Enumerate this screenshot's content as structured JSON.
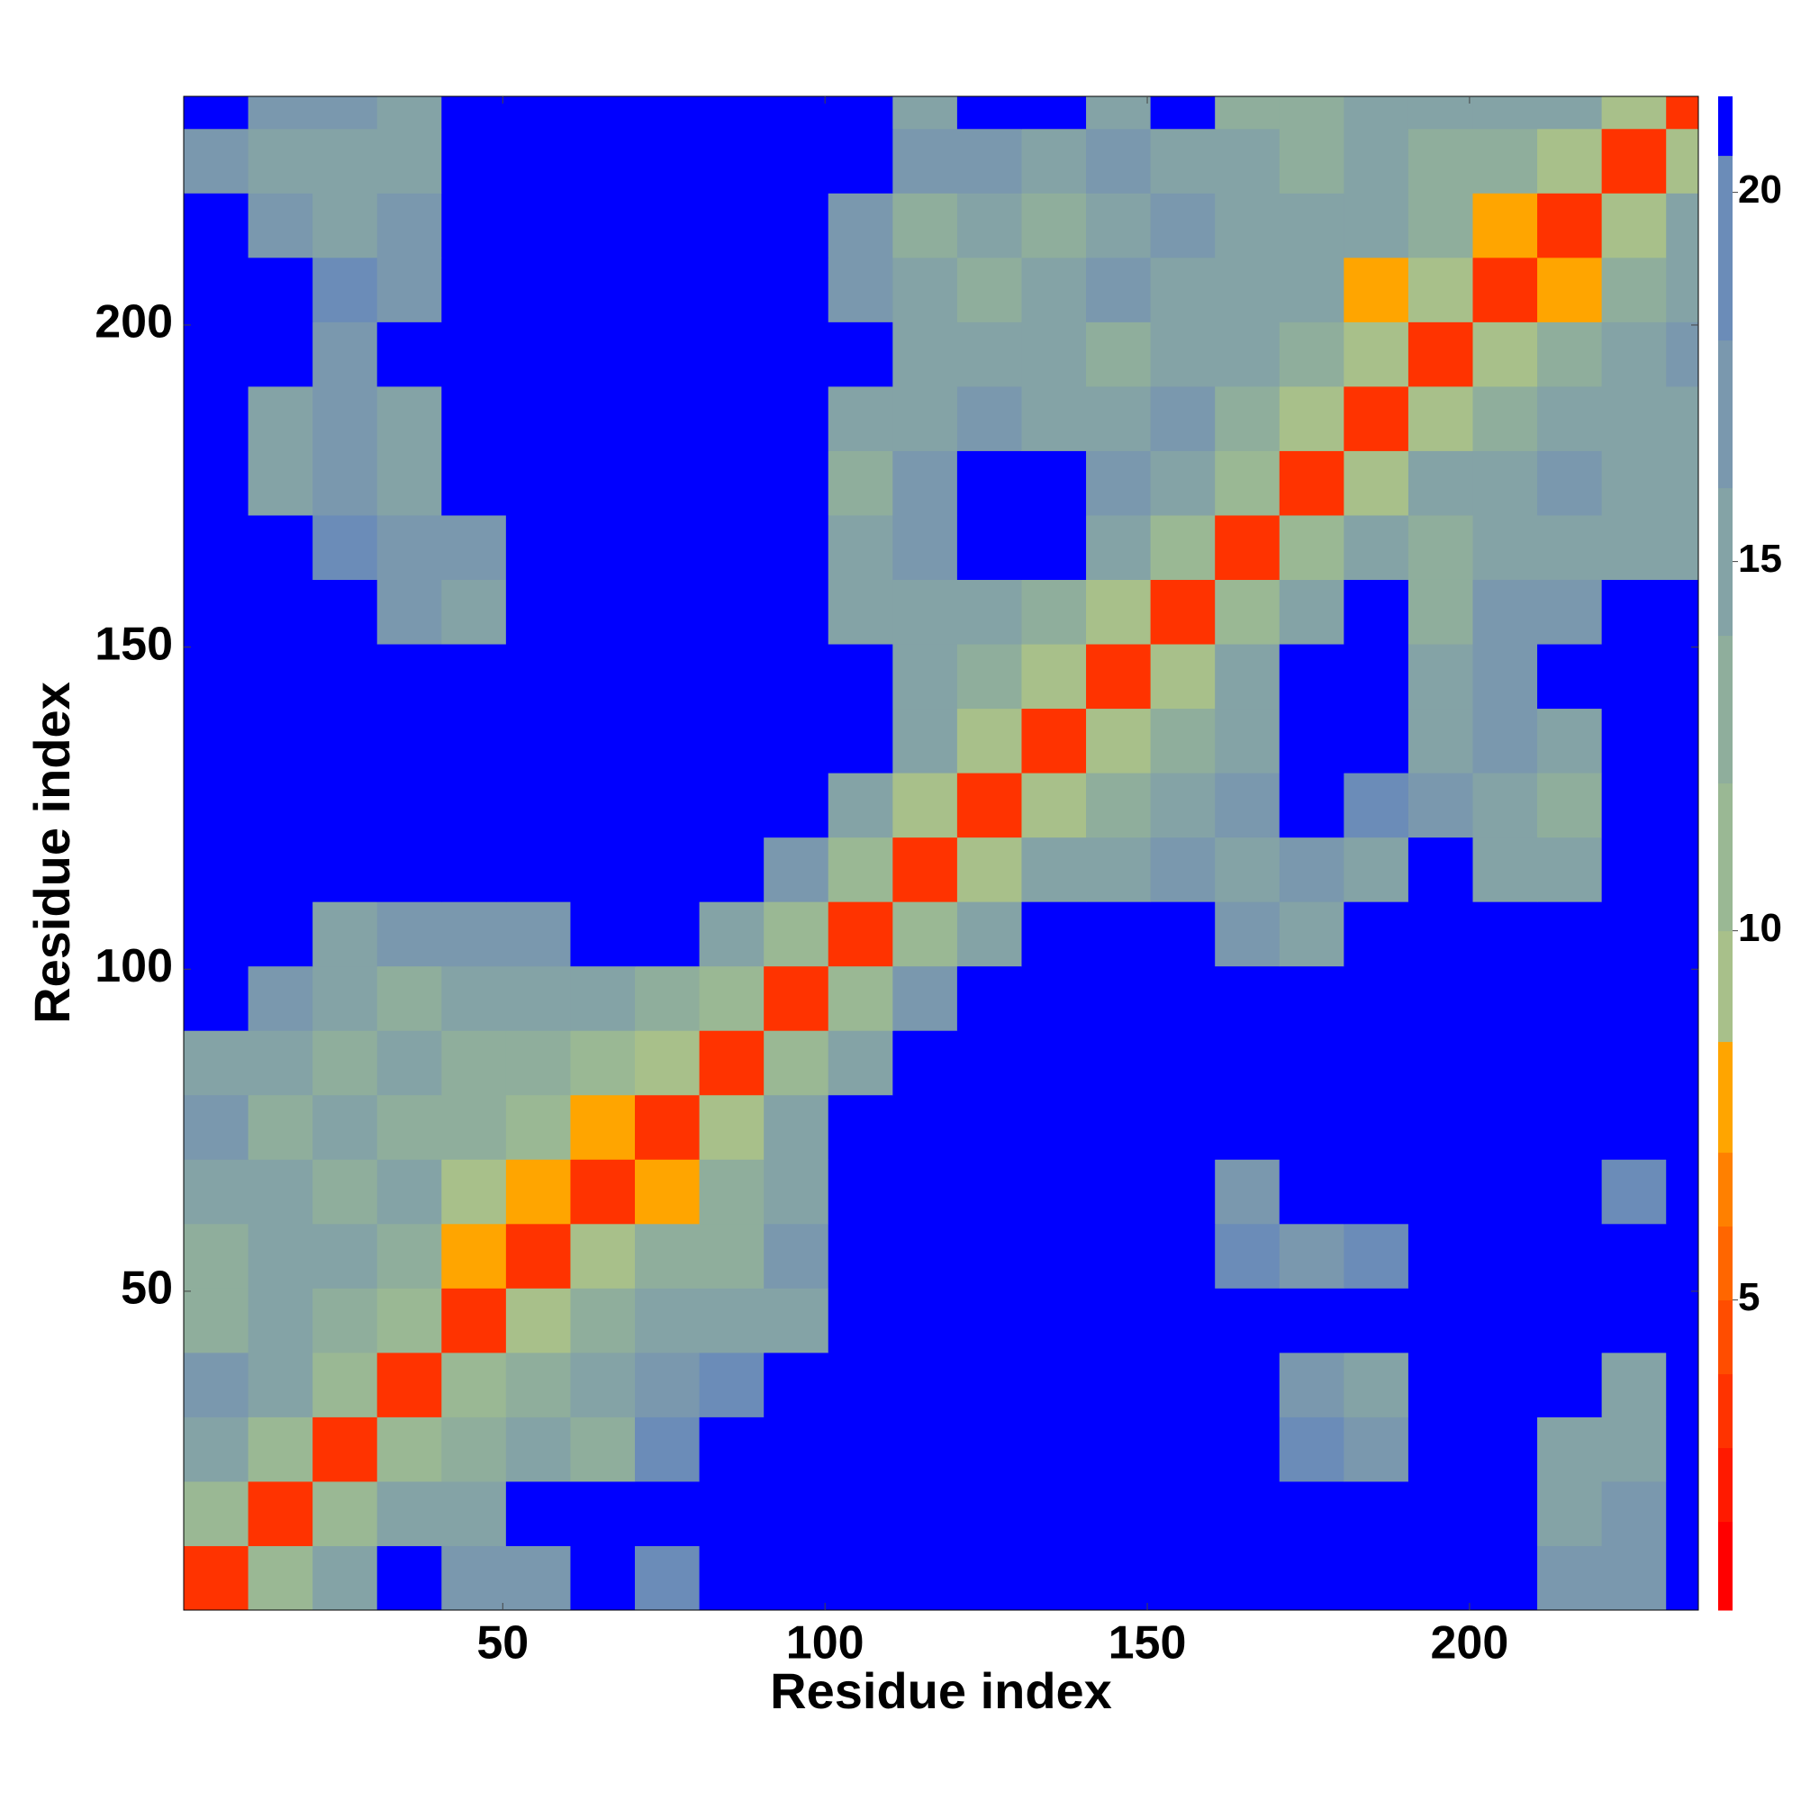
{
  "chart_data": {
    "type": "heatmap",
    "x_label": "Residue index",
    "y_label": "Residue index",
    "xlim": [
      0.5,
      235.5
    ],
    "ylim": [
      0.5,
      235.5
    ],
    "xticks": [
      50,
      100,
      150,
      200
    ],
    "yticks": [
      50,
      100,
      150,
      200
    ],
    "x_edges": [
      0.5,
      10.5,
      20.5,
      30.5,
      40.5,
      50.5,
      60.5,
      70.5,
      80.5,
      90.5,
      100.5,
      110.5,
      120.5,
      130.5,
      140.5,
      150.5,
      160.5,
      170.5,
      180.5,
      190.5,
      200.5,
      210.5,
      220.5,
      230.5,
      235.5
    ],
    "y_edges": [
      0.5,
      10.5,
      20.5,
      30.5,
      40.5,
      50.5,
      60.5,
      70.5,
      80.5,
      90.5,
      100.5,
      110.5,
      120.5,
      130.5,
      140.5,
      150.5,
      160.5,
      170.5,
      180.5,
      190.5,
      200.5,
      210.5,
      220.5,
      230.5,
      235.5
    ],
    "z": [
      [
        3,
        10,
        15,
        21,
        16,
        16,
        21,
        18,
        21,
        21,
        21,
        21,
        21,
        21,
        21,
        21,
        21,
        21,
        21,
        21,
        21,
        16,
        16,
        21
      ],
      [
        10,
        3,
        10,
        14,
        15,
        21,
        21,
        21,
        21,
        21,
        21,
        21,
        21,
        21,
        21,
        21,
        21,
        21,
        21,
        21,
        21,
        15,
        17,
        21
      ],
      [
        14,
        10,
        3,
        10,
        13,
        15,
        13,
        18,
        21,
        21,
        21,
        21,
        21,
        21,
        21,
        21,
        21,
        18,
        17,
        21,
        21,
        14,
        15,
        21
      ],
      [
        16,
        14,
        10,
        3,
        10,
        12,
        14,
        16,
        18,
        21,
        21,
        21,
        21,
        21,
        21,
        21,
        21,
        16,
        15,
        21,
        21,
        21,
        15,
        21
      ],
      [
        13,
        14,
        13,
        10,
        3,
        9,
        13,
        14,
        14,
        15,
        21,
        21,
        21,
        21,
        21,
        21,
        21,
        21,
        21,
        21,
        21,
        21,
        21,
        21
      ],
      [
        12,
        15,
        14,
        13,
        8,
        3,
        9,
        12,
        13,
        16,
        21,
        21,
        21,
        21,
        21,
        21,
        18,
        17,
        18,
        21,
        21,
        21,
        21,
        21
      ],
      [
        15,
        14,
        13,
        14,
        9,
        8,
        3,
        8,
        12,
        14,
        21,
        21,
        21,
        21,
        21,
        21,
        16,
        21,
        21,
        21,
        21,
        21,
        20,
        21
      ],
      [
        16,
        13,
        14,
        12,
        13,
        10,
        8,
        3,
        9,
        14,
        21,
        21,
        21,
        21,
        21,
        21,
        21,
        21,
        21,
        21,
        21,
        21,
        21,
        21
      ],
      [
        14,
        15,
        13,
        14,
        12,
        13,
        10,
        9,
        3,
        10,
        15,
        21,
        21,
        21,
        21,
        21,
        21,
        21,
        21,
        21,
        21,
        21,
        21,
        21
      ],
      [
        21,
        16,
        14,
        13,
        14,
        14,
        14,
        13,
        10,
        3,
        10,
        16,
        21,
        21,
        21,
        21,
        21,
        21,
        21,
        21,
        21,
        21,
        21,
        21
      ],
      [
        21,
        21,
        15,
        16,
        16,
        17,
        21,
        21,
        15,
        10,
        3,
        10,
        15,
        21,
        21,
        21,
        16,
        15,
        21,
        21,
        21,
        21,
        21,
        21
      ],
      [
        21,
        21,
        21,
        21,
        21,
        21,
        21,
        21,
        21,
        16,
        10,
        3,
        9,
        14,
        15,
        16,
        15,
        16,
        14,
        21,
        15,
        14,
        21,
        21
      ],
      [
        21,
        21,
        21,
        21,
        21,
        21,
        21,
        21,
        21,
        21,
        15,
        9,
        3,
        9,
        13,
        15,
        16,
        21,
        18,
        16,
        14,
        13,
        21,
        21
      ],
      [
        21,
        21,
        21,
        21,
        21,
        21,
        21,
        21,
        21,
        21,
        21,
        14,
        9,
        3,
        9,
        12,
        14,
        21,
        21,
        15,
        16,
        15,
        21,
        21
      ],
      [
        21,
        21,
        21,
        21,
        21,
        21,
        21,
        21,
        21,
        21,
        21,
        15,
        13,
        9,
        3,
        9,
        14,
        21,
        21,
        14,
        17,
        21,
        21,
        21
      ],
      [
        21,
        21,
        21,
        16,
        15,
        21,
        21,
        21,
        21,
        21,
        15,
        14,
        14,
        12,
        9,
        3,
        10,
        15,
        21,
        13,
        16,
        16,
        21,
        21
      ],
      [
        21,
        21,
        18,
        16,
        17,
        21,
        21,
        21,
        21,
        21,
        14,
        16,
        21,
        21,
        14,
        10,
        3,
        10,
        14,
        12,
        15,
        14,
        15,
        14
      ],
      [
        21,
        15,
        17,
        15,
        21,
        21,
        21,
        21,
        21,
        21,
        13,
        17,
        21,
        21,
        16,
        15,
        10,
        3,
        9,
        14,
        15,
        16,
        14,
        15
      ],
      [
        21,
        14,
        16,
        15,
        21,
        21,
        21,
        21,
        21,
        21,
        14,
        15,
        16,
        14,
        15,
        16,
        13,
        9,
        3,
        9,
        12,
        15,
        14,
        15
      ],
      [
        21,
        21,
        16,
        21,
        21,
        21,
        21,
        21,
        21,
        21,
        21,
        14,
        15,
        14,
        13,
        15,
        14,
        13,
        9,
        3,
        9,
        12,
        14,
        16
      ],
      [
        21,
        21,
        18,
        17,
        21,
        21,
        21,
        21,
        21,
        21,
        17,
        15,
        13,
        15,
        16,
        14,
        15,
        14,
        8,
        9,
        3,
        8,
        13,
        15
      ],
      [
        21,
        16,
        15,
        16,
        21,
        21,
        21,
        21,
        21,
        21,
        16,
        12,
        14,
        13,
        15,
        16,
        14,
        14,
        15,
        13,
        8,
        3,
        9,
        15
      ],
      [
        16,
        14,
        15,
        14,
        21,
        21,
        21,
        21,
        21,
        21,
        21,
        16,
        16,
        15,
        17,
        15,
        14,
        13,
        14,
        12,
        13,
        9,
        3,
        9
      ],
      [
        21,
        16,
        17,
        15,
        21,
        21,
        21,
        21,
        21,
        21,
        21,
        15,
        21,
        21,
        15,
        21,
        13,
        12,
        14,
        15,
        14,
        14,
        9,
        3
      ]
    ],
    "colorbar": {
      "clim": [
        0.8,
        21.3
      ],
      "ticks": [
        5,
        10,
        15,
        20
      ],
      "boundaries": [
        0.8,
        2,
        3,
        4,
        5,
        6,
        7,
        8.5,
        10,
        12,
        14,
        16,
        18,
        20.5,
        21.3
      ],
      "colors": [
        "#ff0000",
        "#ff1a00",
        "#ff3300",
        "#ff4d00",
        "#ff6600",
        "#ff8000",
        "#ffa500",
        "#a8c08a",
        "#9ab894",
        "#8fae9c",
        "#84a3a6",
        "#7a98ae",
        "#6b8cb8",
        "#0000ff"
      ]
    }
  }
}
